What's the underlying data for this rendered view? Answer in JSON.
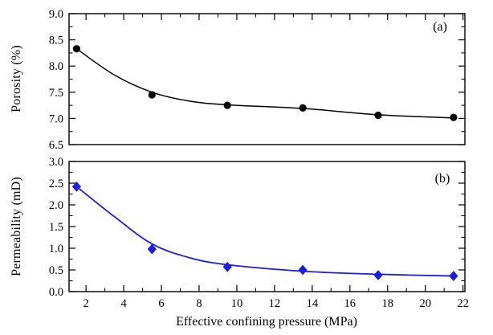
{
  "chart_data": [
    {
      "type": "scatter",
      "panel_label": "(a)",
      "ylabel": "Porosity (%)",
      "xlabel": "",
      "x": [
        1.5,
        5.5,
        9.5,
        13.5,
        17.5,
        21.5
      ],
      "y": [
        8.33,
        7.45,
        7.25,
        7.2,
        7.06,
        7.02
      ],
      "fit_curve": {
        "x": [
          1.5,
          3.5,
          5.5,
          7.5,
          9.5,
          13.5,
          17.5,
          21.5
        ],
        "y": [
          8.33,
          7.83,
          7.5,
          7.33,
          7.26,
          7.19,
          7.07,
          7.01
        ]
      },
      "marker": "circle",
      "color": "#000000",
      "ylim": [
        6.5,
        9.0
      ],
      "yticks": [
        6.5,
        7.0,
        7.5,
        8.0,
        8.5,
        9.0
      ],
      "y_minor_step": 0.25,
      "grid": false,
      "legend": "none"
    },
    {
      "type": "scatter",
      "panel_label": "(b)",
      "ylabel": "Permeability (mD)",
      "xlabel": "Effective confining pressure (MPa)",
      "x": [
        1.5,
        5.5,
        9.5,
        13.5,
        17.5,
        21.5
      ],
      "y": [
        2.42,
        0.98,
        0.57,
        0.5,
        0.38,
        0.36
      ],
      "fit_curve": {
        "x": [
          1.5,
          3.5,
          5.5,
          7.5,
          9.5,
          13.5,
          17.5,
          21.5
        ],
        "y": [
          2.42,
          1.73,
          1.1,
          0.78,
          0.62,
          0.47,
          0.4,
          0.36
        ]
      },
      "marker": "diamond",
      "color": "#1c1ce0",
      "ylim": [
        0.0,
        3.0
      ],
      "yticks": [
        0.0,
        0.5,
        1.0,
        1.5,
        2.0,
        2.5,
        3.0
      ],
      "y_minor_step": 0.25,
      "grid": false,
      "legend": "none"
    }
  ],
  "x_axis": {
    "label": "Effective confining pressure (MPa)",
    "ticks": [
      2,
      4,
      6,
      8,
      10,
      12,
      14,
      16,
      18,
      20,
      22
    ],
    "minor_step": 1,
    "lim": [
      1.1,
      22.1
    ]
  }
}
